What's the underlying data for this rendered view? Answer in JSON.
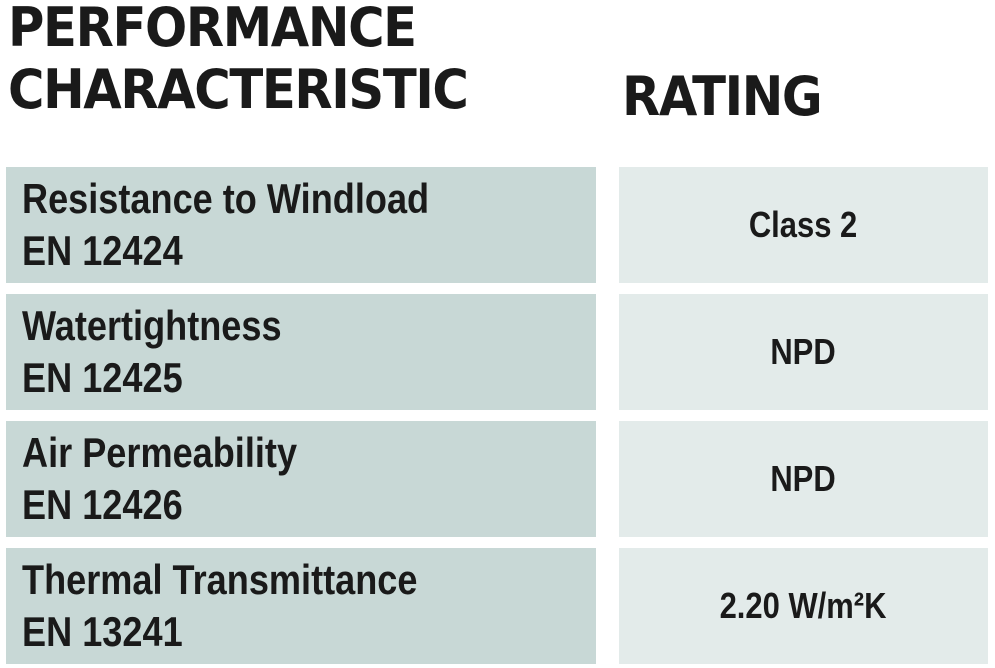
{
  "header": {
    "characteristic_line1": "PERFORMANCE",
    "characteristic_line2": "CHARACTERISTIC",
    "rating": "RATING"
  },
  "rows": [
    {
      "name": "Resistance to Windload",
      "standard": "EN 12424",
      "rating": "Class 2"
    },
    {
      "name": "Watertightness",
      "standard": "EN 12425",
      "rating": "NPD"
    },
    {
      "name": "Air Permeability",
      "standard": "EN 12426",
      "rating": "NPD"
    },
    {
      "name": "Thermal Transmittance",
      "standard": "EN 13241",
      "rating": "2.20 W/m²K"
    }
  ],
  "colors": {
    "left_cell": "#c8d8d6",
    "right_cell": "#e3ebea",
    "text": "#1a1a1a"
  }
}
